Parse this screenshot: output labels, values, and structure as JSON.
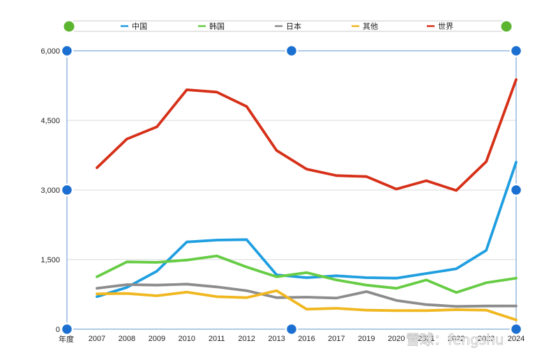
{
  "chart_data": {
    "type": "line",
    "title": "",
    "xlabel": "年度",
    "ylabel": "",
    "categories": [
      "2007",
      "2008",
      "2009",
      "2010",
      "2011",
      "2012",
      "2013",
      "2016",
      "2017",
      "2019",
      "2020",
      "2021",
      "2022",
      "2023",
      "2024"
    ],
    "ylim": [
      0,
      6000
    ],
    "yticks": [
      0,
      1500,
      3000,
      4500,
      6000
    ],
    "ytick_labels": [
      "0",
      "1,500",
      "3,000",
      "4,500",
      "6,000"
    ],
    "grid": true,
    "legend_position": "top",
    "series": [
      {
        "name": "中国",
        "color": "#1f9ee0",
        "values": [
          700,
          900,
          1250,
          1880,
          1920,
          1930,
          1170,
          1110,
          1150,
          1110,
          1100,
          1200,
          1300,
          1700,
          3600
        ]
      },
      {
        "name": "韩国",
        "color": "#66cc44",
        "values": [
          1130,
          1450,
          1440,
          1490,
          1580,
          1340,
          1130,
          1220,
          1060,
          950,
          880,
          1060,
          790,
          1000,
          1100
        ]
      },
      {
        "name": "日本",
        "color": "#8c8c8c",
        "values": [
          880,
          960,
          950,
          970,
          910,
          830,
          680,
          690,
          670,
          810,
          620,
          530,
          490,
          500,
          500
        ]
      },
      {
        "name": "其他",
        "color": "#f0b720",
        "values": [
          760,
          770,
          720,
          800,
          700,
          680,
          830,
          430,
          450,
          410,
          400,
          400,
          420,
          410,
          200
        ]
      },
      {
        "name": "世界",
        "color": "#d63018",
        "values": [
          3480,
          4100,
          4360,
          5160,
          5110,
          4800,
          3850,
          3450,
          3310,
          3290,
          3020,
          3200,
          2990,
          3610,
          5380
        ]
      }
    ]
  },
  "watermark": {
    "text": "雪球：fengshu"
  }
}
